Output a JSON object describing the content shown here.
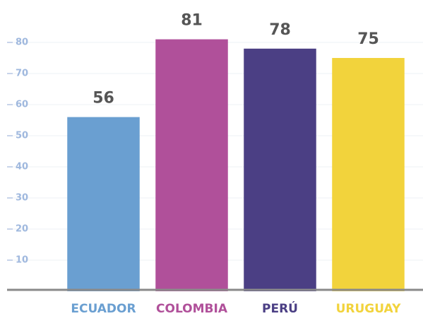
{
  "chart_data": {
    "type": "bar",
    "categories": [
      "ECUADOR",
      "COLOMBIA",
      "PERÚ",
      "URUGUAY"
    ],
    "values": [
      56,
      81,
      78,
      75
    ],
    "colors": [
      "#6a9fd1",
      "#b0509a",
      "#4b3f84",
      "#f2d33c"
    ],
    "ylim": [
      0,
      90
    ],
    "yticks": [
      10,
      20,
      30,
      40,
      50,
      60,
      70,
      80
    ],
    "grid": true
  }
}
